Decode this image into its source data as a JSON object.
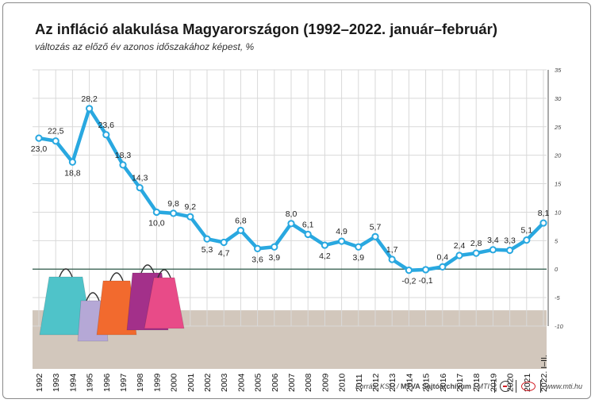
{
  "title": "Az infláció alakulása Magyarországon (1992–2022. január–február)",
  "subtitle": "változás az előző év azonos időszakához képest, %",
  "source": {
    "prefix": "Forrás: KSH / ",
    "archive": "MTVA Sajtóarchívum",
    "suffix": " / MTI",
    "site": "www.mti.hu"
  },
  "colors": {
    "line": "#29a8e0",
    "zero_line": "#2e5a4a",
    "grid": "#d9d9d9",
    "base_band": "#d2c7bc",
    "label": "#222222"
  },
  "chart_data": {
    "type": "line",
    "categories": [
      "1992",
      "1993",
      "1994",
      "1995",
      "1996",
      "1997",
      "1998",
      "1999",
      "2000",
      "2001",
      "2002",
      "2003",
      "2004",
      "2005",
      "2006",
      "2007",
      "2008",
      "2009",
      "2010",
      "2011",
      "2012",
      "2013",
      "2014",
      "2015",
      "2016",
      "2017",
      "2018",
      "2019",
      "2020",
      "2021",
      "2022. I–II."
    ],
    "values": [
      23.0,
      22.5,
      18.8,
      28.2,
      23.6,
      18.3,
      14.3,
      10.0,
      9.8,
      9.2,
      5.3,
      4.7,
      6.8,
      3.6,
      3.9,
      8.0,
      6.1,
      4.2,
      4.9,
      3.9,
      5.7,
      1.7,
      -0.2,
      -0.1,
      0.4,
      2.4,
      2.8,
      3.4,
      3.3,
      5.1,
      8.1
    ],
    "value_labels": [
      "23,0",
      "22,5",
      "18,8",
      "28,2",
      "23,6",
      "18,3",
      "14,3",
      "10,0",
      "9,8",
      "9,2",
      "5,3",
      "4,7",
      "6,8",
      "3,6",
      "3,9",
      "8,0",
      "6,1",
      "4,2",
      "4,9",
      "3,9",
      "5,7",
      "1,7",
      "-0,2",
      "-0,1",
      "0,4",
      "2,4",
      "2,8",
      "3,4",
      "3,3",
      "5,1",
      "8,1"
    ],
    "label_position": [
      "below",
      "above",
      "below",
      "above",
      "above",
      "above",
      "above",
      "below",
      "above",
      "above",
      "below",
      "below",
      "above",
      "below",
      "below",
      "above",
      "above",
      "below",
      "above",
      "below",
      "above",
      "above",
      "below",
      "below",
      "above",
      "above",
      "above",
      "above",
      "above",
      "above",
      "above"
    ],
    "y_ticks": [
      -10,
      -5,
      0,
      5,
      10,
      15,
      20,
      25,
      30,
      35
    ],
    "ylim": [
      -10,
      35
    ],
    "grid": true,
    "y_axis_side": "right"
  }
}
